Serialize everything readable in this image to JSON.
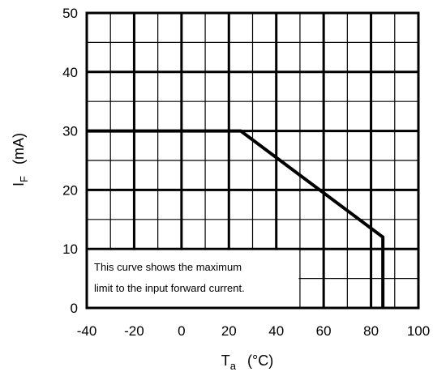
{
  "chart_data": {
    "type": "line",
    "title": "",
    "xlabel": {
      "main": "T",
      "sub": "a",
      "unit": "(°C)"
    },
    "ylabel": {
      "main": "I",
      "sub": "F",
      "unit": "(mA)"
    },
    "xlim": [
      -40,
      100
    ],
    "ylim": [
      0,
      50
    ],
    "x_ticks": [
      -40,
      -20,
      0,
      20,
      40,
      60,
      80,
      100
    ],
    "y_ticks": [
      0,
      10,
      20,
      30,
      40,
      50
    ],
    "x_minor_step": 10,
    "y_minor_step": 5,
    "grid": true,
    "series": [
      {
        "x": [
          -40,
          25,
          85,
          85
        ],
        "y": [
          30,
          30,
          12,
          0
        ]
      }
    ],
    "annotation": {
      "lines": [
        "This curve shows the maximum",
        "limit to the input forward current."
      ],
      "box_x": [
        -40,
        50
      ],
      "box_y": [
        0,
        10
      ]
    }
  }
}
